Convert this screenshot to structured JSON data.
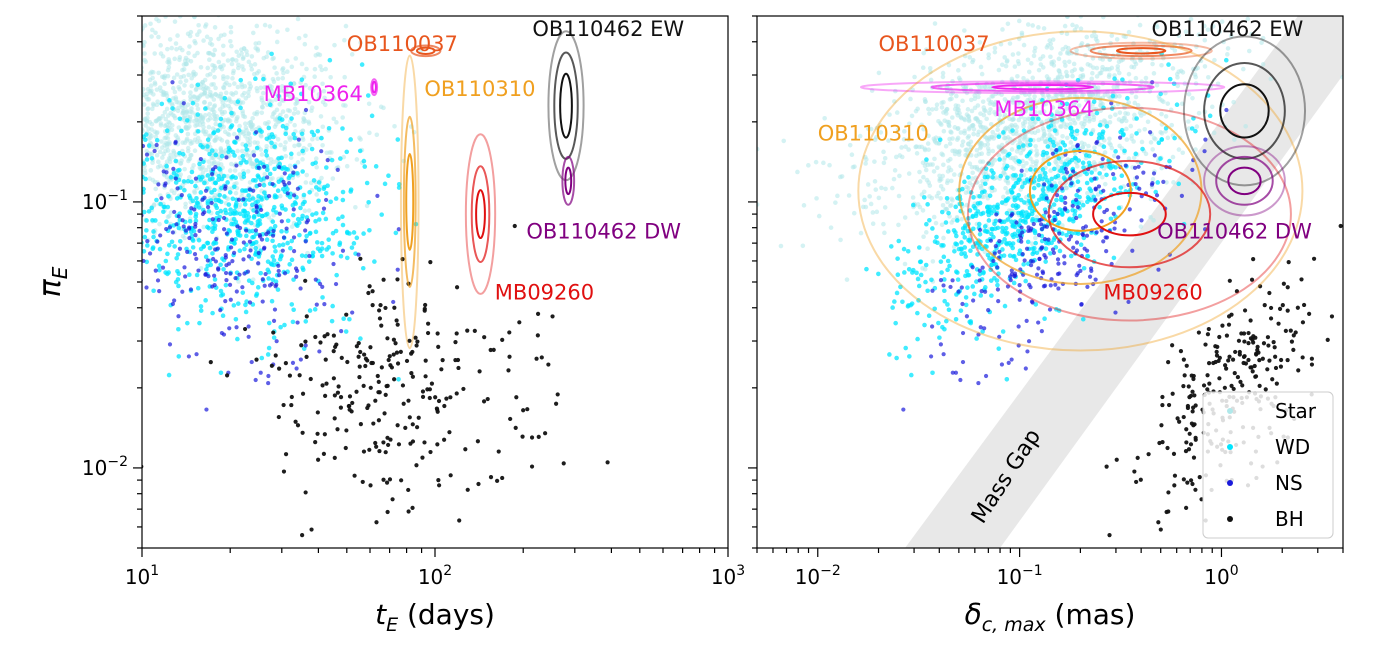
{
  "chart_data": [
    {
      "type": "scatter",
      "panel": "left",
      "xlabel_main": "t",
      "xlabel_sub": "E",
      "xlabel_rest": " (days)",
      "ylabel_main": "π",
      "ylabel_sub": "E",
      "x_scale": "log",
      "y_scale": "log",
      "xlim": [
        10,
        1000
      ],
      "ylim": [
        0.005,
        0.5
      ],
      "x_ticks": [
        {
          "base": "10",
          "exp": "1",
          "value": 10
        },
        {
          "base": "10",
          "exp": "2",
          "value": 100
        },
        {
          "base": "10",
          "exp": "3",
          "value": 1000
        }
      ],
      "y_ticks": [
        {
          "base": "10",
          "exp": "−2",
          "value": 0.01
        },
        {
          "base": "10",
          "exp": "−1",
          "value": 0.1
        }
      ],
      "grid": false,
      "series": [
        {
          "name": "Star",
          "color": "#b0e8ea",
          "distribution": {
            "x_log_mean": 1.2,
            "x_log_sd": 0.25,
            "y_log_mean": -0.7,
            "y_log_sd": 0.2
          }
        },
        {
          "name": "WD",
          "color": "#00e5ff",
          "distribution": {
            "x_log_mean": 1.35,
            "x_log_sd": 0.22,
            "y_log_mean": -1.05,
            "y_log_sd": 0.2
          }
        },
        {
          "name": "NS",
          "color": "#1a1adb",
          "distribution": {
            "x_log_mean": 1.3,
            "x_log_sd": 0.22,
            "y_log_mean": -1.15,
            "y_log_sd": 0.2
          }
        },
        {
          "name": "BH",
          "color": "#111111",
          "distribution": {
            "x_log_mean": 1.9,
            "x_log_sd": 0.25,
            "y_log_mean": -1.7,
            "y_log_sd": 0.2
          }
        }
      ],
      "annotations": [
        {
          "text": "OB110037",
          "color": "#e8561e",
          "x": 50,
          "y": 0.37
        },
        {
          "text": "OB110462 EW",
          "color": "#111111",
          "x": 215,
          "y": 0.42
        },
        {
          "text": "MB10364",
          "color": "#ee22ee",
          "x": 26,
          "y": 0.24
        },
        {
          "text": "OB110310",
          "color": "#f0a020",
          "x": 92,
          "y": 0.25
        },
        {
          "text": "OB110462 DW",
          "color": "#800080",
          "x": 205,
          "y": 0.073
        },
        {
          "text": "MB09260",
          "color": "#e01010",
          "x": 160,
          "y": 0.043
        }
      ],
      "posteriors": [
        {
          "name": "OB110037",
          "color": "#e8561e",
          "x": 93,
          "y": 0.37
        },
        {
          "name": "MB10364",
          "color": "#ee22ee",
          "x": 62,
          "y": 0.27
        },
        {
          "name": "OB110310",
          "color": "#f0a020",
          "x": 82,
          "y": 0.1
        },
        {
          "name": "MB09260",
          "color": "#e01010",
          "x": 143,
          "y": 0.09
        },
        {
          "name": "OB110462 EW",
          "color": "#111111",
          "x": 280,
          "y": 0.23
        },
        {
          "name": "OB110462 DW",
          "color": "#800080",
          "x": 285,
          "y": 0.12
        }
      ]
    },
    {
      "type": "scatter",
      "panel": "right",
      "xlabel_main": "δ",
      "xlabel_sub": "c, max",
      "xlabel_rest": " (mas)",
      "x_scale": "log",
      "y_scale": "log",
      "xlim": [
        0.005,
        4
      ],
      "ylim": [
        0.005,
        0.5
      ],
      "x_ticks": [
        {
          "base": "10",
          "exp": "−2",
          "value": 0.01
        },
        {
          "base": "10",
          "exp": "−1",
          "value": 0.1
        },
        {
          "base": "10",
          "exp": "0",
          "value": 1
        }
      ],
      "grid": false,
      "mass_gap_label": "Mass Gap",
      "legend_position": "lower-right",
      "legend": [
        {
          "label": "Star",
          "color": "#b0e8ea"
        },
        {
          "label": "WD",
          "color": "#00e5ff"
        },
        {
          "label": "NS",
          "color": "#1a1adb"
        },
        {
          "label": "BH",
          "color": "#111111"
        }
      ],
      "annotations": [
        {
          "text": "OB110037",
          "color": "#e8561e",
          "x": 0.02,
          "y": 0.37
        },
        {
          "text": "OB110462 EW",
          "color": "#111111",
          "x": 0.45,
          "y": 0.42
        },
        {
          "text": "MB10364",
          "color": "#ee22ee",
          "x": 0.075,
          "y": 0.21
        },
        {
          "text": "OB110310",
          "color": "#f0a020",
          "x": 0.01,
          "y": 0.17
        },
        {
          "text": "OB110462 DW",
          "color": "#800080",
          "x": 0.48,
          "y": 0.073
        },
        {
          "text": "MB09260",
          "color": "#e01010",
          "x": 0.26,
          "y": 0.043
        }
      ],
      "posteriors": [
        {
          "name": "OB110037",
          "color": "#e8561e",
          "x": 0.4,
          "y": 0.37
        },
        {
          "name": "MB10364",
          "color": "#ee22ee",
          "x": 0.13,
          "y": 0.27
        },
        {
          "name": "OB110310",
          "color": "#f0a020",
          "x": 0.2,
          "y": 0.11
        },
        {
          "name": "MB09260",
          "color": "#e01010",
          "x": 0.35,
          "y": 0.09
        },
        {
          "name": "OB110462 EW",
          "color": "#111111",
          "x": 1.3,
          "y": 0.22
        },
        {
          "name": "OB110462 DW",
          "color": "#800080",
          "x": 1.3,
          "y": 0.12
        }
      ]
    }
  ]
}
